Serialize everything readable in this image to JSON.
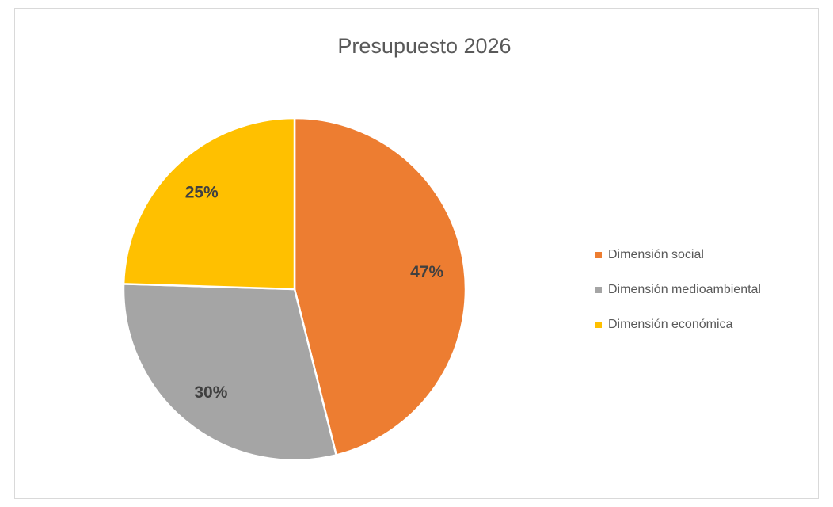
{
  "chart_data": {
    "type": "pie",
    "title": "Presupuesto 2026",
    "categories": [
      "Dimensión social",
      "Dimensión medioambiental",
      "Dimensión económica"
    ],
    "values": [
      47,
      30,
      25
    ],
    "value_labels": [
      "47%",
      "30%",
      "25%"
    ],
    "colors": [
      "#ED7D31",
      "#A5A5A5",
      "#FFC000"
    ],
    "legend": "right"
  }
}
